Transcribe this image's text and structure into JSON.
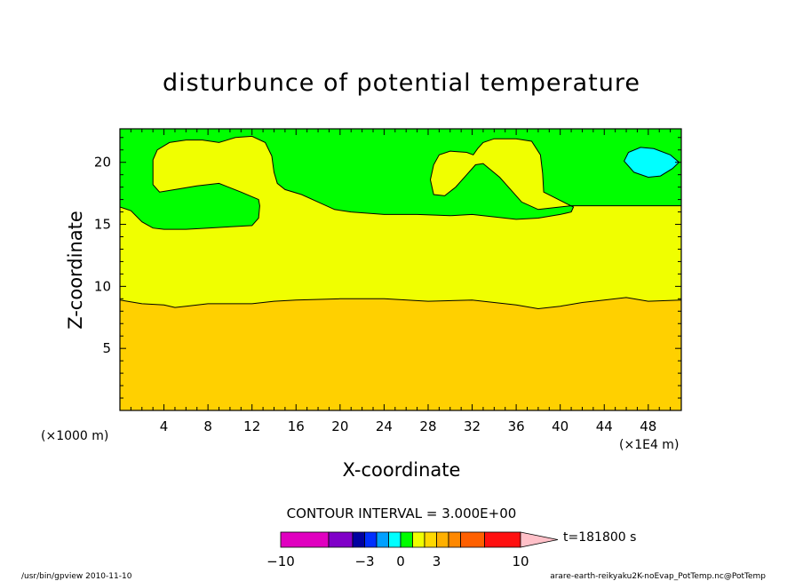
{
  "chart_data": {
    "type": "contour",
    "title": "disturbunce of potential temperature",
    "xlabel": "X-coordinate",
    "ylabel": "Z-coordinate",
    "x_unit_left": "(×1000 m)",
    "x_unit_right": "(×1E4 m)",
    "xlim": [
      0,
      51
    ],
    "ylim": [
      0,
      22.7
    ],
    "x_ticks": [
      4,
      8,
      12,
      16,
      20,
      24,
      28,
      32,
      36,
      40,
      44,
      48
    ],
    "y_ticks": [
      5,
      10,
      15,
      20
    ],
    "contour_interval": "CONTOUR INTERVAL = 3.000E+00",
    "time_label": "t=181800 s",
    "colorbar_labels": [
      "−10",
      "−3",
      "0",
      "3",
      "10"
    ],
    "colorbar_colors": [
      "#e000c0",
      "#8000c8",
      "#0000a0",
      "#0030ff",
      "#00a0ff",
      "#00ffff",
      "#00ff00",
      "#f0ff00",
      "#ffd800",
      "#ffb000",
      "#ff8800",
      "#ff6000",
      "#ff1010",
      "#ff8080",
      "#ffc0c8"
    ],
    "field_colors": {
      "lower_layer": "#ffd000",
      "middle_layer": "#f0ff00",
      "upper_layer": "#00ff00",
      "cold_patch": "#00ffff"
    },
    "contours": {
      "lower_boundary": [
        [
          0,
          8.9
        ],
        [
          2,
          8.6
        ],
        [
          4,
          8.5
        ],
        [
          5,
          8.3
        ],
        [
          6,
          8.4
        ],
        [
          8,
          8.6
        ],
        [
          12,
          8.6
        ],
        [
          14,
          8.8
        ],
        [
          16,
          8.9
        ],
        [
          20,
          9.0
        ],
        [
          24,
          9.0
        ],
        [
          28,
          8.8
        ],
        [
          32,
          8.9
        ],
        [
          36,
          8.5
        ],
        [
          38,
          8.2
        ],
        [
          40,
          8.4
        ],
        [
          42,
          8.7
        ],
        [
          44,
          8.9
        ],
        [
          46,
          9.1
        ],
        [
          48,
          8.8
        ],
        [
          51,
          8.9
        ]
      ],
      "upper_boundary": [
        [
          0,
          16.4
        ],
        [
          1,
          16.1
        ],
        [
          2,
          15.2
        ],
        [
          3,
          14.7
        ],
        [
          4,
          14.6
        ],
        [
          6,
          14.6
        ],
        [
          8,
          14.7
        ],
        [
          10,
          14.8
        ],
        [
          12,
          14.9
        ],
        [
          12.6,
          15.5
        ],
        [
          12.7,
          16.5
        ],
        [
          12.6,
          17.0
        ],
        [
          11,
          17.6
        ],
        [
          9,
          18.3
        ],
        [
          7,
          18.1
        ],
        [
          5,
          17.8
        ],
        [
          3.6,
          17.6
        ],
        [
          3.0,
          18.2
        ],
        [
          3.0,
          20.2
        ],
        [
          3.4,
          21.0
        ],
        [
          4.5,
          21.6
        ],
        [
          6,
          21.8
        ],
        [
          7.5,
          21.8
        ],
        [
          9,
          21.6
        ],
        [
          10.5,
          22.0
        ],
        [
          12,
          22.1
        ],
        [
          13.2,
          21.6
        ],
        [
          13.8,
          20.5
        ],
        [
          14,
          19.2
        ],
        [
          14.3,
          18.3
        ],
        [
          15,
          17.8
        ],
        [
          16.5,
          17.4
        ],
        [
          18,
          16.8
        ],
        [
          19.5,
          16.2
        ],
        [
          21,
          16.0
        ],
        [
          24,
          15.8
        ],
        [
          27,
          15.8
        ],
        [
          30,
          15.7
        ],
        [
          32,
          15.8
        ],
        [
          34,
          15.6
        ],
        [
          36,
          15.4
        ],
        [
          38,
          15.5
        ],
        [
          40,
          15.8
        ],
        [
          41,
          16.0
        ],
        [
          41.2,
          16.4
        ],
        [
          40.5,
          16.7
        ],
        [
          38.5,
          17.6
        ],
        [
          38.4,
          19.1
        ],
        [
          38.2,
          20.6
        ],
        [
          37.4,
          21.7
        ],
        [
          36,
          21.9
        ],
        [
          34,
          21.9
        ],
        [
          33,
          21.6
        ],
        [
          32.5,
          21.1
        ],
        [
          32.1,
          20.6
        ],
        [
          31.5,
          20.8
        ],
        [
          30,
          20.9
        ],
        [
          29,
          20.6
        ],
        [
          28.5,
          19.8
        ],
        [
          28.2,
          18.6
        ],
        [
          28.5,
          17.4
        ],
        [
          29.5,
          17.3
        ],
        [
          30.5,
          18.0
        ],
        [
          31.5,
          19.0
        ],
        [
          32.3,
          19.8
        ],
        [
          33,
          19.9
        ],
        [
          34.5,
          18.8
        ],
        [
          35.5,
          17.8
        ],
        [
          36.5,
          16.8
        ],
        [
          38,
          16.2
        ],
        [
          41,
          16.5
        ],
        [
          44,
          16.5
        ],
        [
          48,
          16.5
        ],
        [
          51,
          16.5
        ]
      ],
      "cold_patch": [
        [
          45.8,
          20.1
        ],
        [
          46.2,
          20.8
        ],
        [
          47.3,
          21.2
        ],
        [
          48.5,
          21.1
        ],
        [
          50.0,
          20.6
        ],
        [
          50.8,
          20.0
        ],
        [
          50.2,
          19.5
        ],
        [
          49.1,
          18.9
        ],
        [
          48.0,
          18.8
        ],
        [
          46.7,
          19.2
        ],
        [
          45.8,
          20.1
        ]
      ]
    }
  },
  "footer": {
    "left": "/usr/bin/gpview   2010-11-10",
    "right": "arare-earth-reikyaku2K-noEvap_PotTemp.nc@PotTemp"
  }
}
